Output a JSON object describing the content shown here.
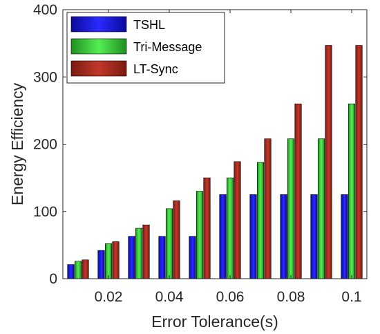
{
  "chart_data": {
    "type": "bar",
    "xlabel": "Error Tolerance(s)",
    "ylabel": "Energy Efficiency",
    "x": [
      0.01,
      0.02,
      0.03,
      0.04,
      0.05,
      0.06,
      0.07,
      0.08,
      0.09,
      0.1
    ],
    "xticks": [
      0.02,
      0.04,
      0.06,
      0.08,
      0.1
    ],
    "xtick_labels": [
      "0.02",
      "0.04",
      "0.06",
      "0.08",
      "0.1"
    ],
    "xlim": [
      0.005,
      0.105
    ],
    "yticks": [
      0,
      100,
      200,
      300,
      400
    ],
    "ytick_labels": [
      "0",
      "100",
      "200",
      "300",
      "400"
    ],
    "ylim": [
      0,
      400
    ],
    "grid": false,
    "legend_position": "top-left",
    "series": [
      {
        "name": "TSHL",
        "color": "#1f1fdc",
        "values": [
          21,
          42,
          63,
          63,
          63,
          125,
          125,
          125,
          125,
          125
        ]
      },
      {
        "name": "Tri-Message",
        "color": "#2fcf2f",
        "values": [
          26,
          52,
          75,
          104,
          130,
          150,
          173,
          208,
          208,
          260
        ]
      },
      {
        "name": "LT-Sync",
        "color": "#c0392b",
        "values": [
          28,
          55,
          80,
          116,
          150,
          174,
          208,
          260,
          347,
          347
        ]
      }
    ]
  }
}
